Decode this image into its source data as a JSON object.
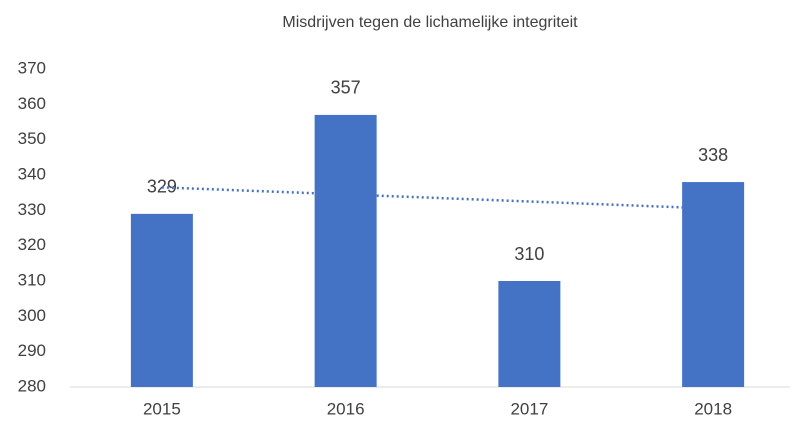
{
  "chart_data": {
    "type": "bar",
    "title": "Misdrijven tegen de lichamelijke integriteit",
    "categories": [
      "2015",
      "2016",
      "2017",
      "2018"
    ],
    "values": [
      329,
      357,
      310,
      338
    ],
    "color": "#4472c4",
    "ylim": [
      280,
      370
    ],
    "yticks": [
      280,
      290,
      300,
      310,
      320,
      330,
      340,
      350,
      360,
      370
    ],
    "grid": false,
    "trendline": {
      "type": "linear",
      "color": "#4472c4",
      "values": [
        336.5,
        334.5,
        332.5,
        330.5
      ]
    }
  }
}
